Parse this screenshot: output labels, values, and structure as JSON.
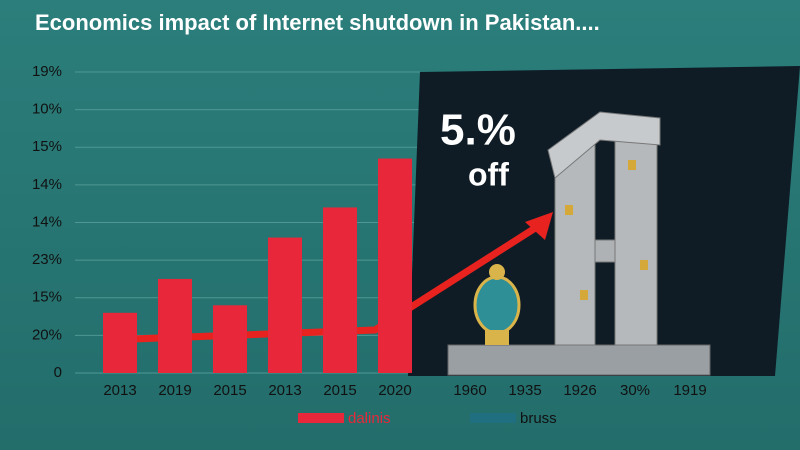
{
  "chart_data": {
    "type": "bar",
    "title": "Economics impact of Internet shutdown in Pakistan....",
    "annotation": {
      "big": "5.%",
      "small": "off"
    },
    "categories": [
      "2013",
      "2019",
      "2015",
      "2013",
      "2015",
      "2020",
      "1960",
      "1935",
      "1926",
      "30%",
      "1919"
    ],
    "series": [
      {
        "name": "dalinis",
        "color": "#e8283a",
        "values": [
          1.6,
          2.5,
          1.8,
          3.6,
          4.4,
          5.7,
          null,
          null,
          null,
          null,
          null
        ]
      },
      {
        "name": "bruss",
        "color": "#1f6f80",
        "values": [
          null,
          null,
          null,
          null,
          null,
          null,
          null,
          null,
          null,
          null,
          null
        ]
      }
    ],
    "ylim": [
      0,
      8
    ],
    "yticks": [
      {
        "value": 0,
        "label": "0"
      },
      {
        "value": 1,
        "label": "20%"
      },
      {
        "value": 2,
        "label": "15%"
      },
      {
        "value": 3,
        "label": "23%"
      },
      {
        "value": 4,
        "label": "14%"
      },
      {
        "value": 5,
        "label": "14%"
      },
      {
        "value": 6,
        "label": "15%"
      },
      {
        "value": 7,
        "label": "10%"
      },
      {
        "value": 8,
        "label": "19%"
      }
    ],
    "grid": true
  }
}
